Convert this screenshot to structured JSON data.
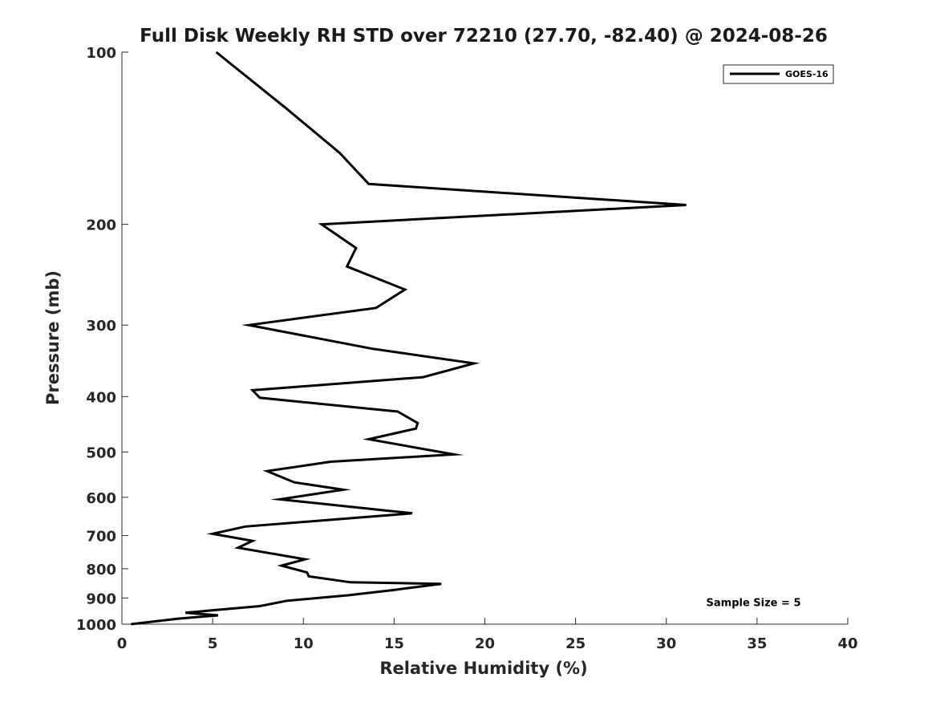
{
  "chart_data": {
    "type": "line",
    "title": "Full Disk Weekly RH STD over 72210 (27.70, -82.40) @ 2024-08-26",
    "xlabel": "Relative Humidity (%)",
    "ylabel": "Pressure (mb)",
    "xlim": [
      0,
      40
    ],
    "ylim": [
      100,
      1000
    ],
    "y_scale": "log",
    "y_reversed": true,
    "x_ticks": [
      0,
      5,
      10,
      15,
      20,
      25,
      30,
      35,
      40
    ],
    "x_tick_labels": [
      "0",
      "5",
      "10",
      "15",
      "20",
      "25",
      "30",
      "35",
      "40"
    ],
    "y_ticks": [
      100,
      200,
      300,
      400,
      500,
      600,
      700,
      800,
      900,
      1000
    ],
    "y_tick_labels": [
      "100",
      "200",
      "300",
      "400",
      "500",
      "600",
      "700",
      "800",
      "900",
      "1000"
    ],
    "grid": false,
    "legend_position": "top-right",
    "series": [
      {
        "name": "GOES-16",
        "color": "#000000",
        "x": [
          5.2,
          9.0,
          12.0,
          13.6,
          31.1,
          11.0,
          12.9,
          12.4,
          15.6,
          14.0,
          7.0,
          13.8,
          19.4,
          16.6,
          7.2,
          7.6,
          15.2,
          16.3,
          16.2,
          13.6,
          18.3,
          11.5,
          8.0,
          9.5,
          12.2,
          8.7,
          16.0,
          12.0,
          6.8,
          5.0,
          7.2,
          6.4,
          10.1,
          8.8,
          10.2,
          10.3,
          12.6,
          17.6,
          14.9,
          12.5,
          9.1,
          7.6,
          3.5,
          5.3,
          3.1,
          0.5
        ],
        "y": [
          100,
          125,
          150,
          170,
          185,
          200,
          220,
          237,
          260,
          280,
          300,
          330,
          350,
          370,
          390,
          402,
          425,
          445,
          455,
          475,
          505,
          520,
          540,
          565,
          582,
          605,
          640,
          655,
          675,
          695,
          715,
          735,
          770,
          790,
          812,
          825,
          845,
          850,
          872,
          890,
          910,
          930,
          955,
          965,
          978,
          1000
        ]
      }
    ],
    "annotations": [
      {
        "text": "Sample Size = 5",
        "x": 32.2,
        "y": 915
      }
    ]
  }
}
